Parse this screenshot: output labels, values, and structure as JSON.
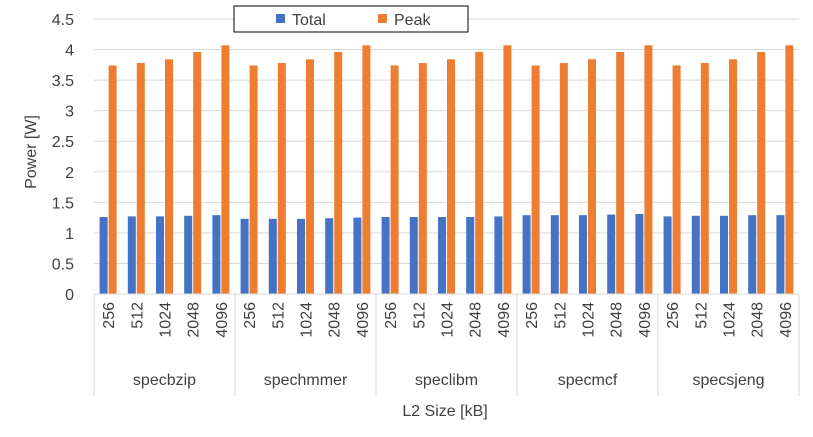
{
  "chart_data": {
    "type": "bar",
    "xlabel": "L2 Size [kB]",
    "ylabel": "Power [W]",
    "ylim": [
      0,
      4.5
    ],
    "yticks": [
      "0",
      "0.5",
      "1",
      "1.5",
      "2",
      "2.5",
      "3",
      "3.5",
      "4",
      "4.5"
    ],
    "grid": true,
    "legend_position": "top",
    "groups": [
      "specbzip",
      "spechmmer",
      "speclibm",
      "specmcf",
      "specsjeng"
    ],
    "subcategories": [
      "256",
      "512",
      "1024",
      "2048",
      "4096"
    ],
    "series": [
      {
        "name": "Total",
        "color": "#4472C4",
        "values": [
          1.26,
          1.27,
          1.27,
          1.28,
          1.29,
          1.23,
          1.23,
          1.23,
          1.24,
          1.25,
          1.26,
          1.26,
          1.26,
          1.26,
          1.27,
          1.29,
          1.29,
          1.29,
          1.3,
          1.31,
          1.27,
          1.28,
          1.28,
          1.29,
          1.29
        ]
      },
      {
        "name": "Peak",
        "color": "#ED7D31",
        "values": [
          3.74,
          3.78,
          3.84,
          3.96,
          4.07,
          3.74,
          3.78,
          3.84,
          3.96,
          4.07,
          3.74,
          3.78,
          3.84,
          3.96,
          4.07,
          3.74,
          3.78,
          3.84,
          3.96,
          4.07,
          3.74,
          3.78,
          3.84,
          3.96,
          4.07
        ]
      }
    ]
  }
}
